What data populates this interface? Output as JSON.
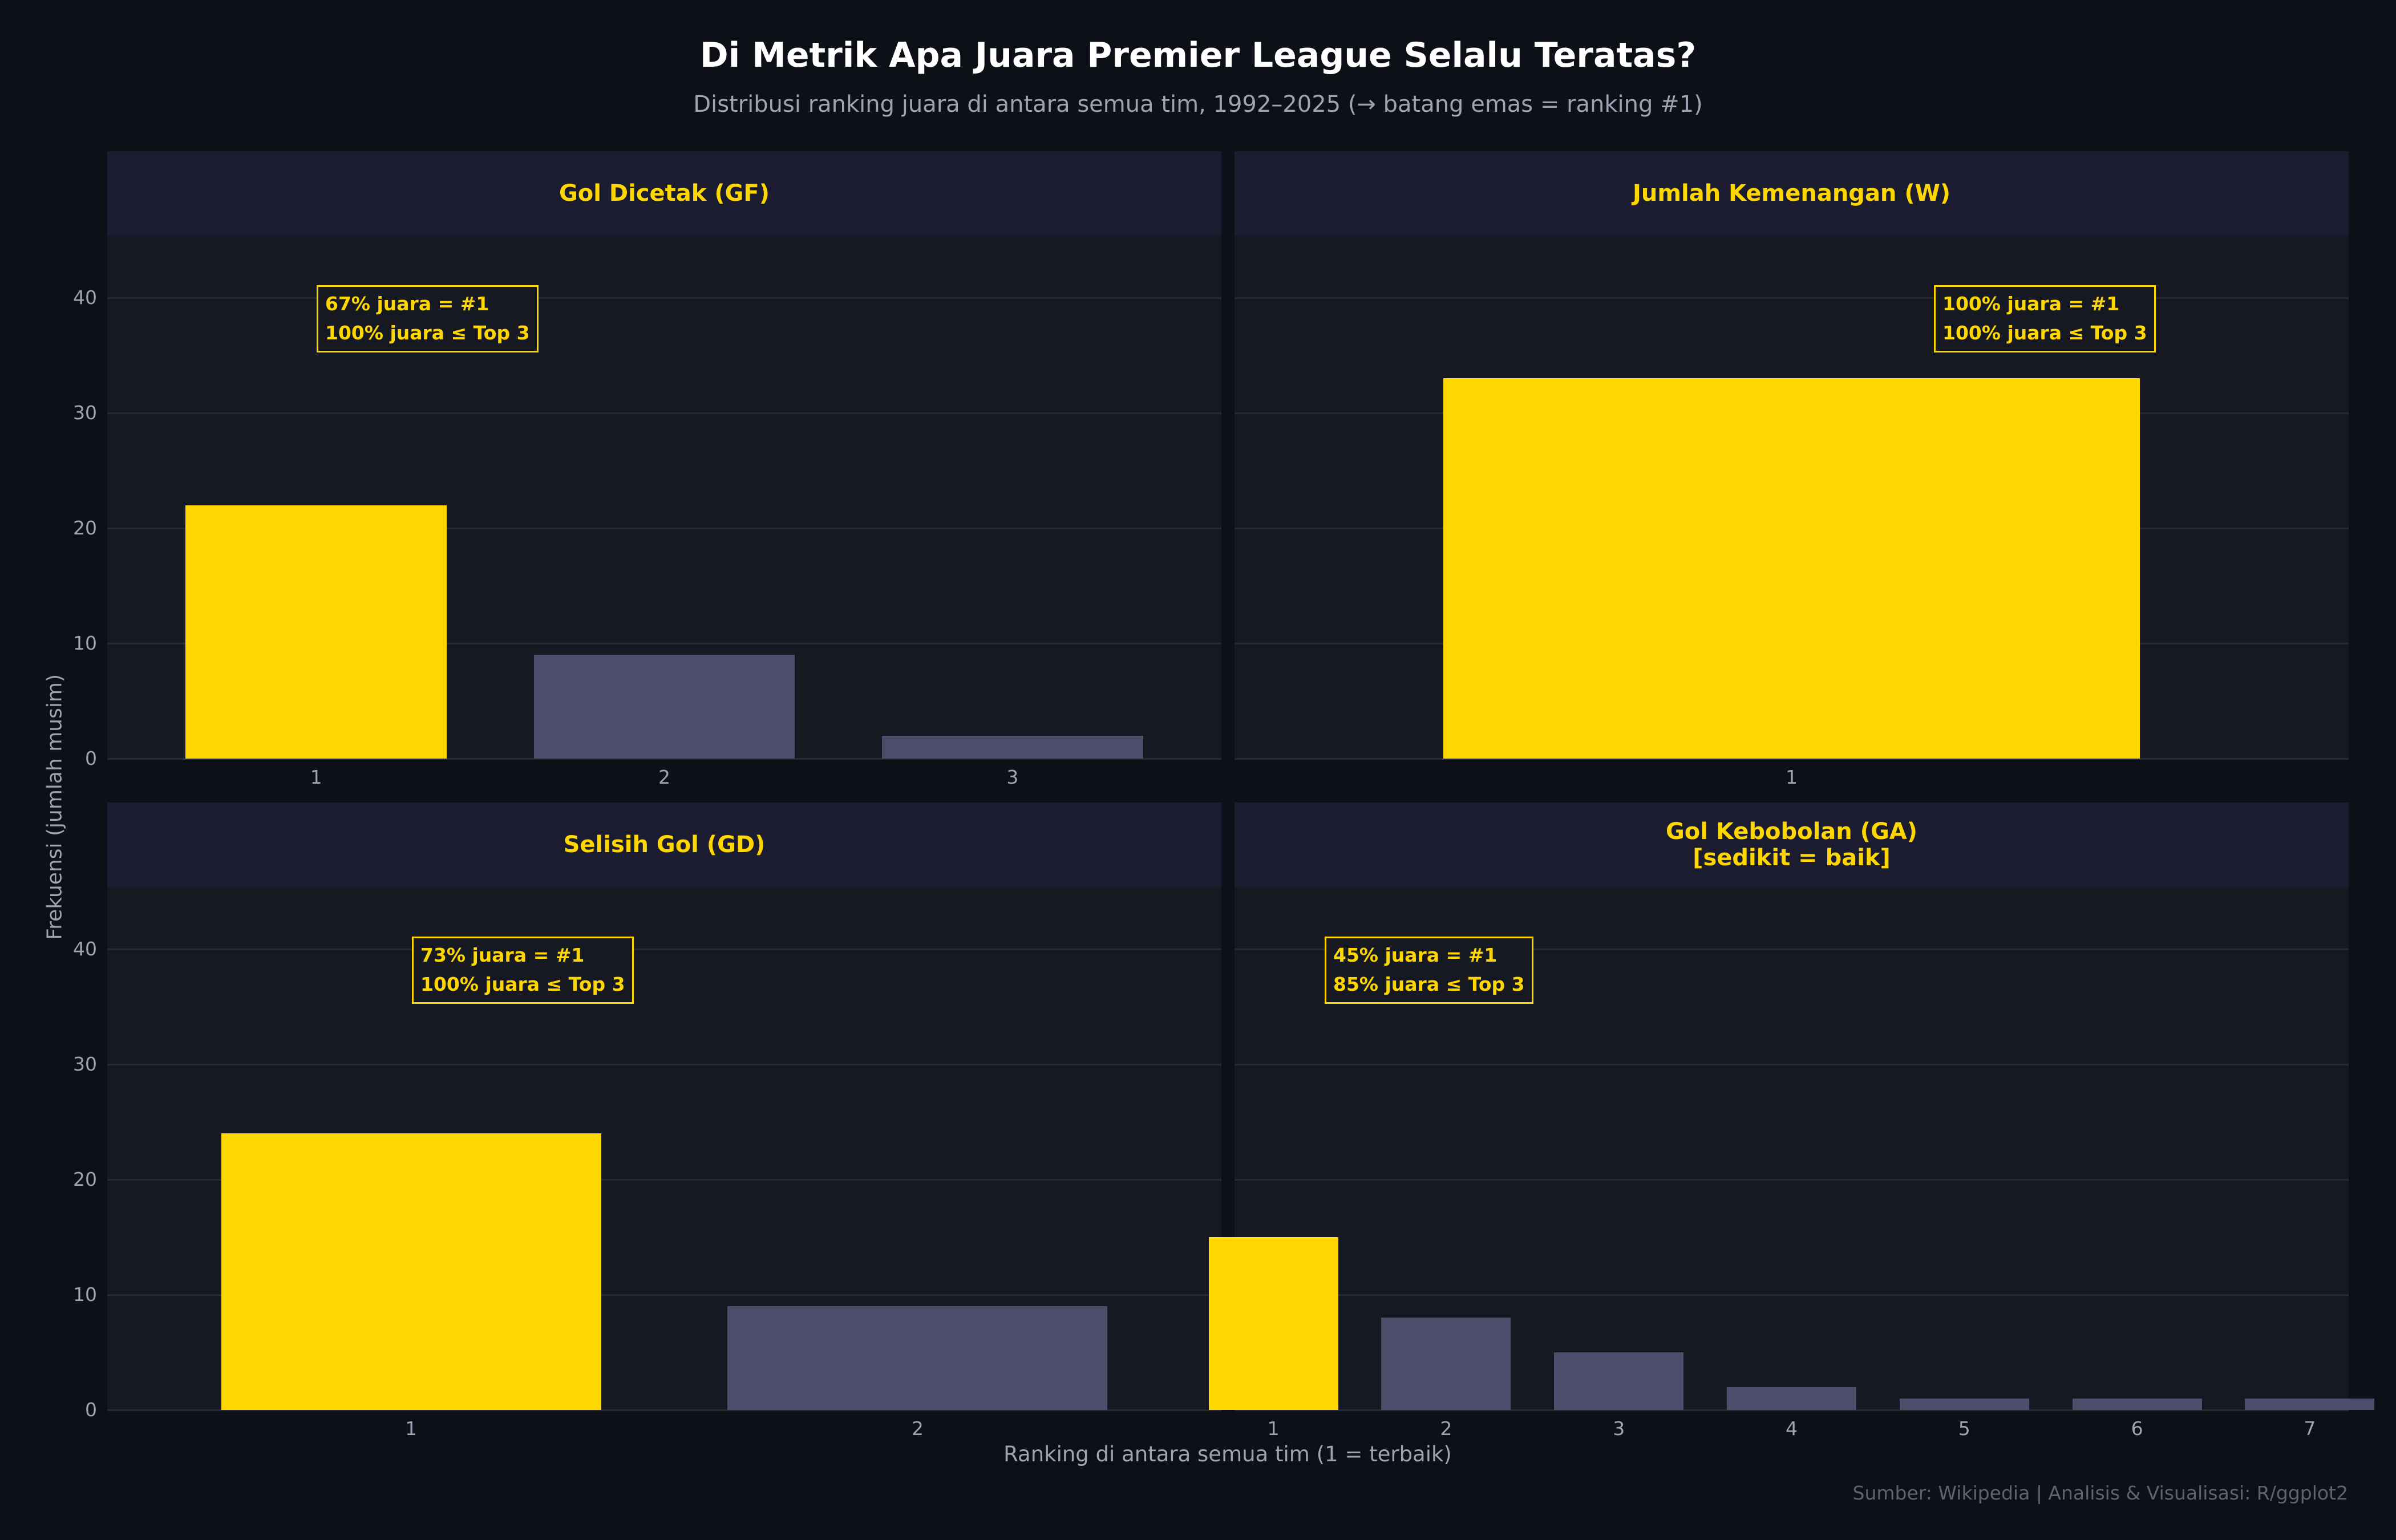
{
  "title": "Di Metrik Apa Juara Premier League Selalu Teratas?",
  "subtitle": "Distribusi ranking juara di antara semua tim, 1992–2025 (→ batang emas = ranking #1)",
  "ylabel": "Frekuensi (jumlah musim)",
  "xlabel": "Ranking di antara semua tim (1 = terbaik)",
  "caption": "Sumber: Wikipedia | Analisis & Visualisasi: R/ggplot2",
  "colors": {
    "background": "#0d1017",
    "panel": "#161921",
    "strip": "#1b1c30",
    "gold": "#ffd700",
    "other_bar": "#4b4d6b"
  },
  "chart_data": {
    "type": "bar",
    "ylim": [
      0,
      40
    ],
    "yticks": [
      0,
      10,
      20,
      30,
      40
    ],
    "grid": true,
    "panels": [
      {
        "title_lines": [
          "Gol Dicetak (GF)"
        ],
        "categories": [
          "1",
          "2",
          "3"
        ],
        "values": [
          22,
          9,
          2
        ],
        "annotation": [
          "67% juara = #1",
          "100% juara ≤ Top 3"
        ]
      },
      {
        "title_lines": [
          "Jumlah Kemenangan (W)"
        ],
        "categories": [
          "1"
        ],
        "values": [
          33
        ],
        "annotation": [
          "100% juara = #1",
          "100% juara ≤ Top 3"
        ]
      },
      {
        "title_lines": [
          "Selisih Gol (GD)"
        ],
        "categories": [
          "1",
          "2"
        ],
        "values": [
          24,
          9
        ],
        "annotation": [
          "73% juara = #1",
          "100% juara ≤ Top 3"
        ]
      },
      {
        "title_lines": [
          "Gol Kebobolan (GA)",
          "[sedikit = baik]"
        ],
        "categories": [
          "1",
          "2",
          "3",
          "4",
          "5",
          "6",
          "7"
        ],
        "values": [
          15,
          8,
          5,
          2,
          1,
          1,
          1
        ],
        "annotation": [
          "45% juara = #1",
          "85% juara ≤ Top 3"
        ]
      }
    ]
  }
}
